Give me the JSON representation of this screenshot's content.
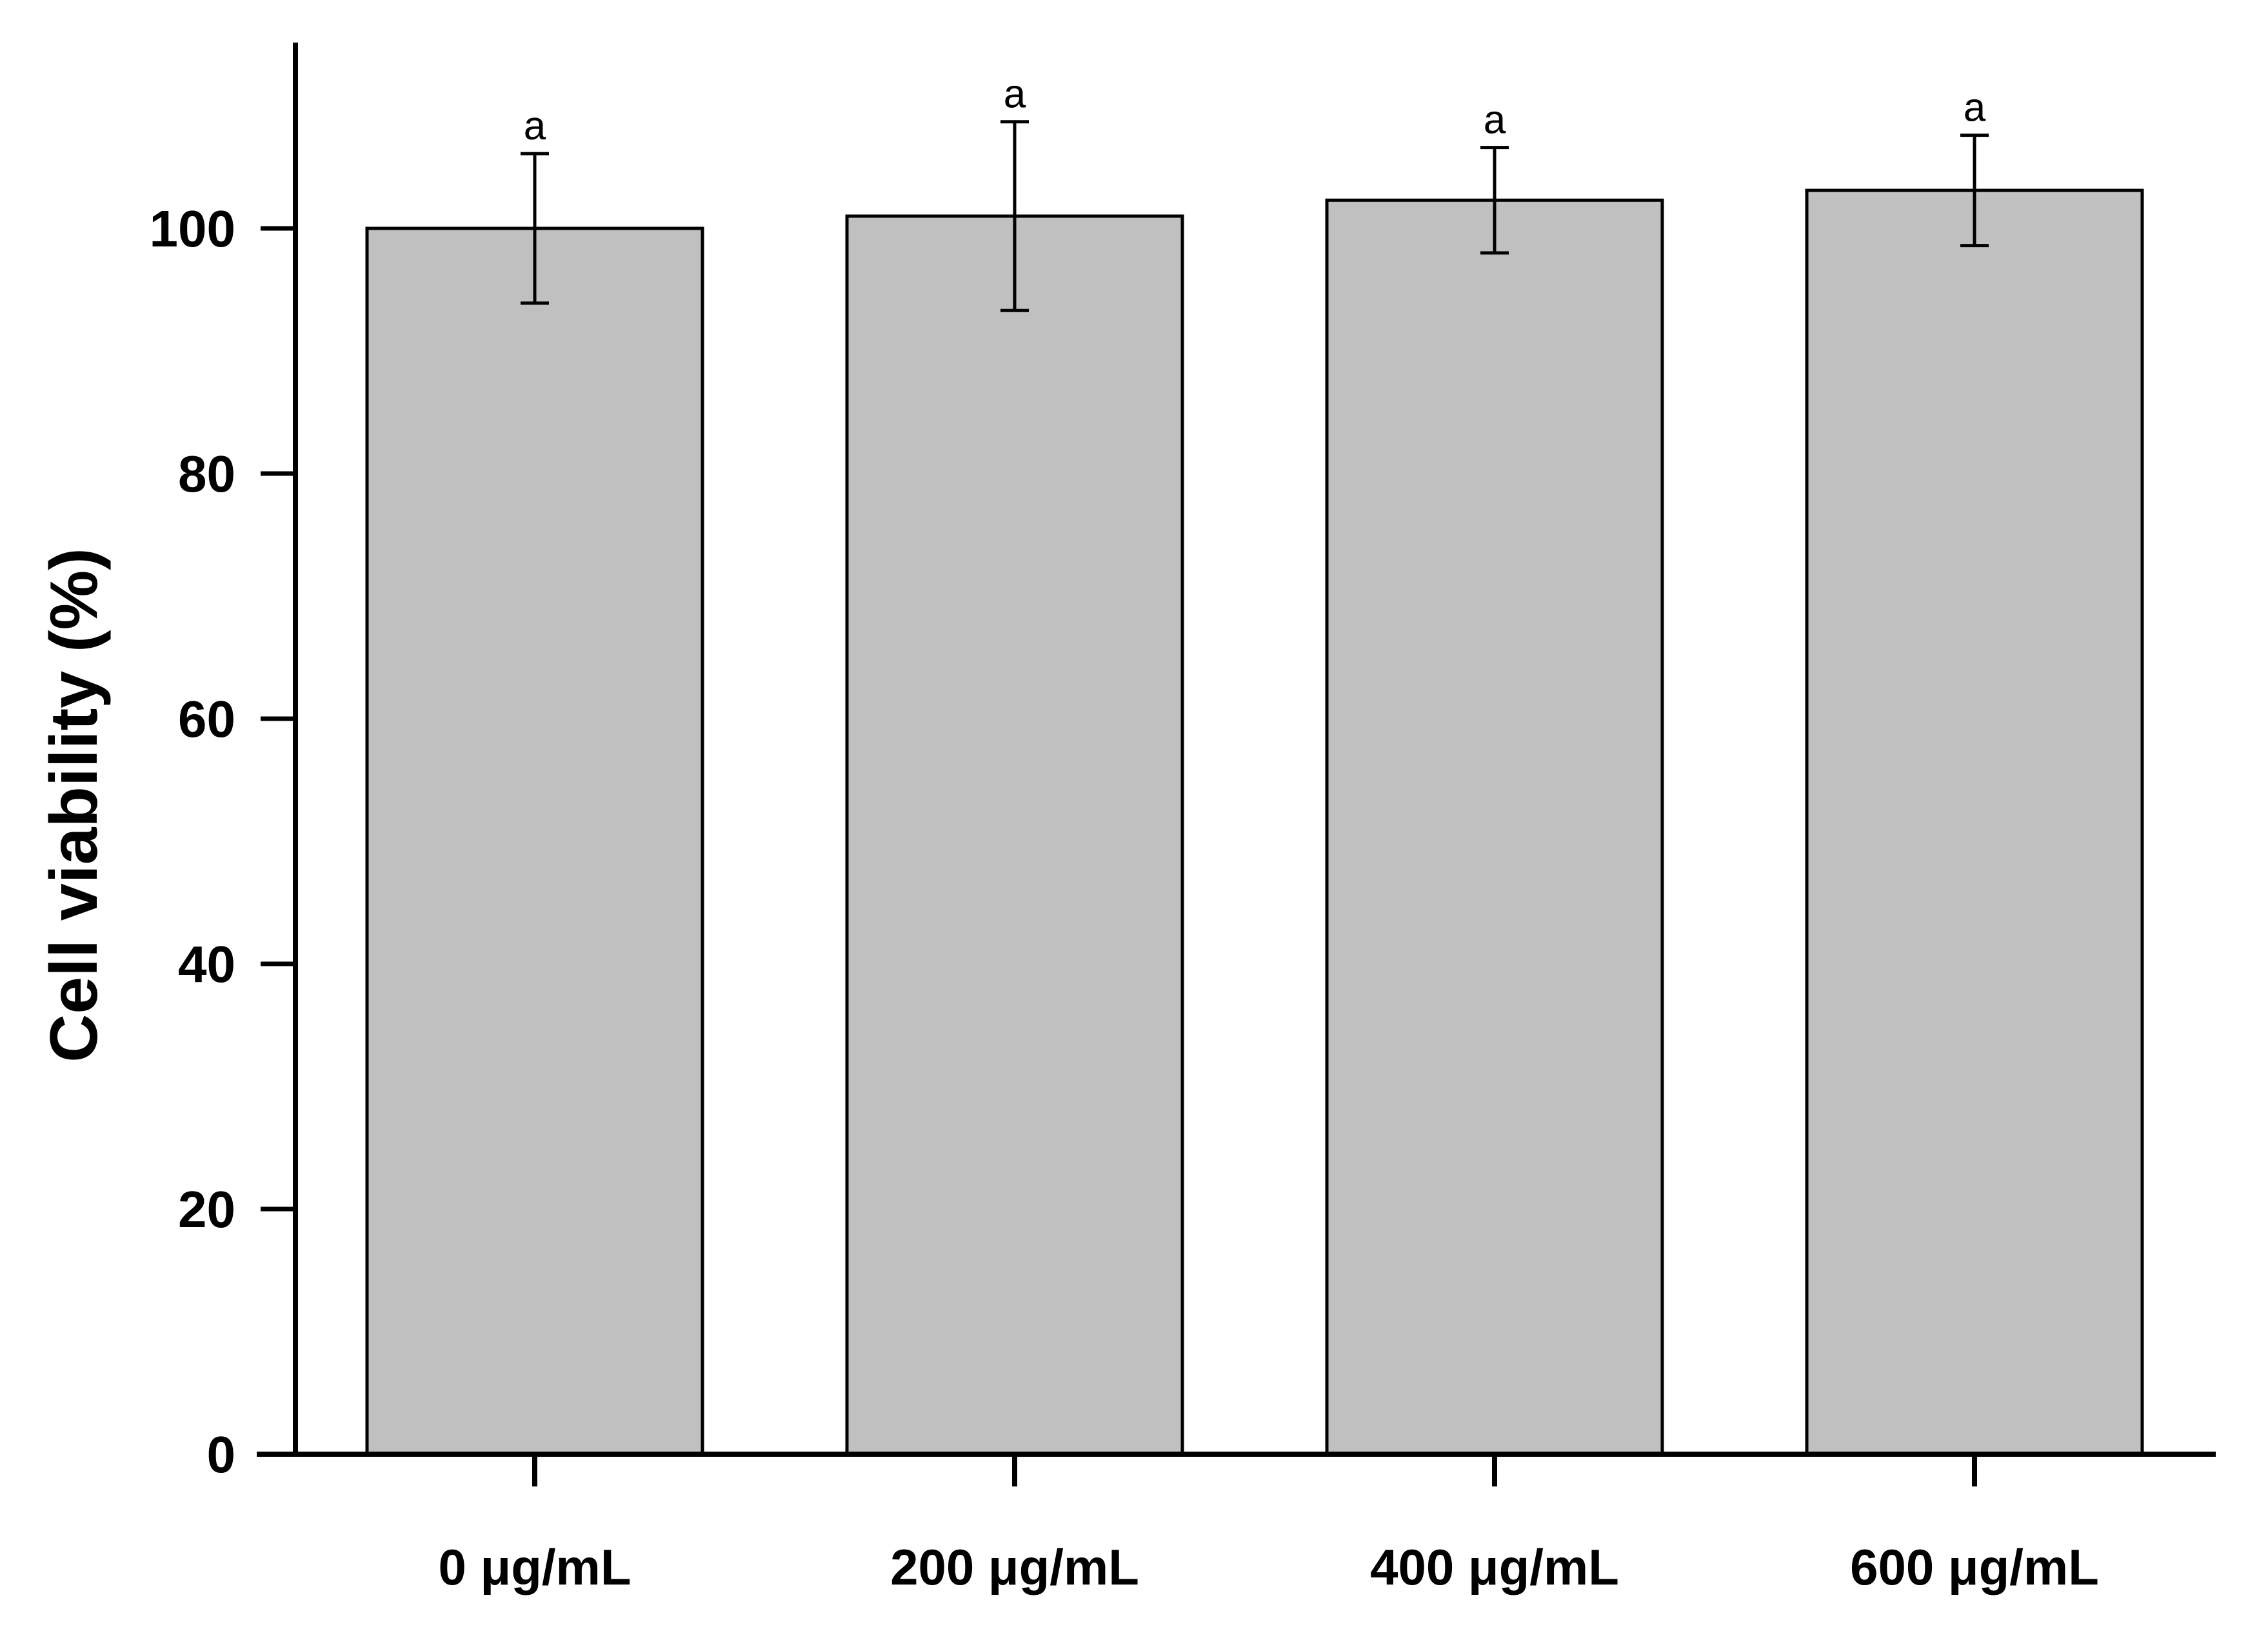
{
  "chart_data": {
    "type": "bar",
    "title": "",
    "xlabel": "",
    "ylabel": "Cell viability (%)",
    "categories": [
      "0 μg/mL",
      "200 μg/mL",
      "400 μg/mL",
      "600 μg/mL"
    ],
    "series": [
      {
        "values": [
          100.0,
          101.0,
          102.3,
          103.1
        ],
        "error": [
          6.1,
          7.7,
          4.3,
          4.5
        ],
        "significance": [
          "a",
          "a",
          "a",
          "a"
        ]
      }
    ],
    "yticks": [
      0,
      20,
      40,
      60,
      80,
      100
    ],
    "ytick_labels": [
      "0",
      "20",
      "40",
      "60",
      "80",
      "100"
    ],
    "ylim": [
      0,
      115
    ],
    "grid": false,
    "legend": "none",
    "colors": {
      "bar_fill": "#c0c0c0",
      "bar_stroke": "#000000",
      "axis": "#000000"
    }
  }
}
